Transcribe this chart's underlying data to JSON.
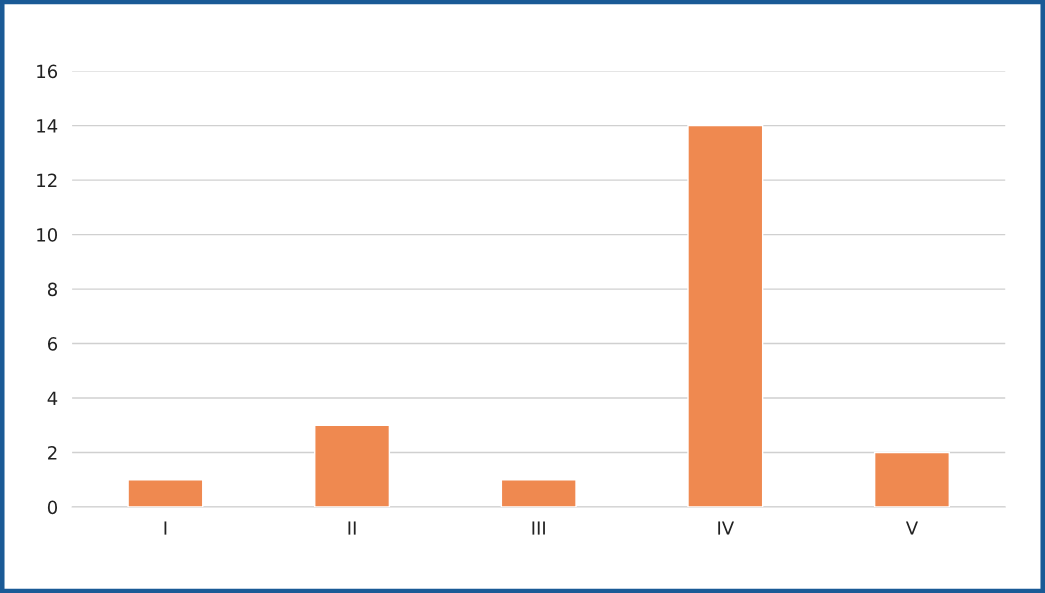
{
  "chart_data": {
    "type": "bar",
    "categories": [
      "I",
      "II",
      "III",
      "IV",
      "V"
    ],
    "values": [
      1,
      3,
      1,
      14,
      2
    ],
    "color": "#ef8950",
    "ylim": [
      0,
      16
    ],
    "yticks": [
      0,
      2,
      4,
      6,
      8,
      10,
      12,
      14,
      16
    ],
    "grid": "y"
  }
}
